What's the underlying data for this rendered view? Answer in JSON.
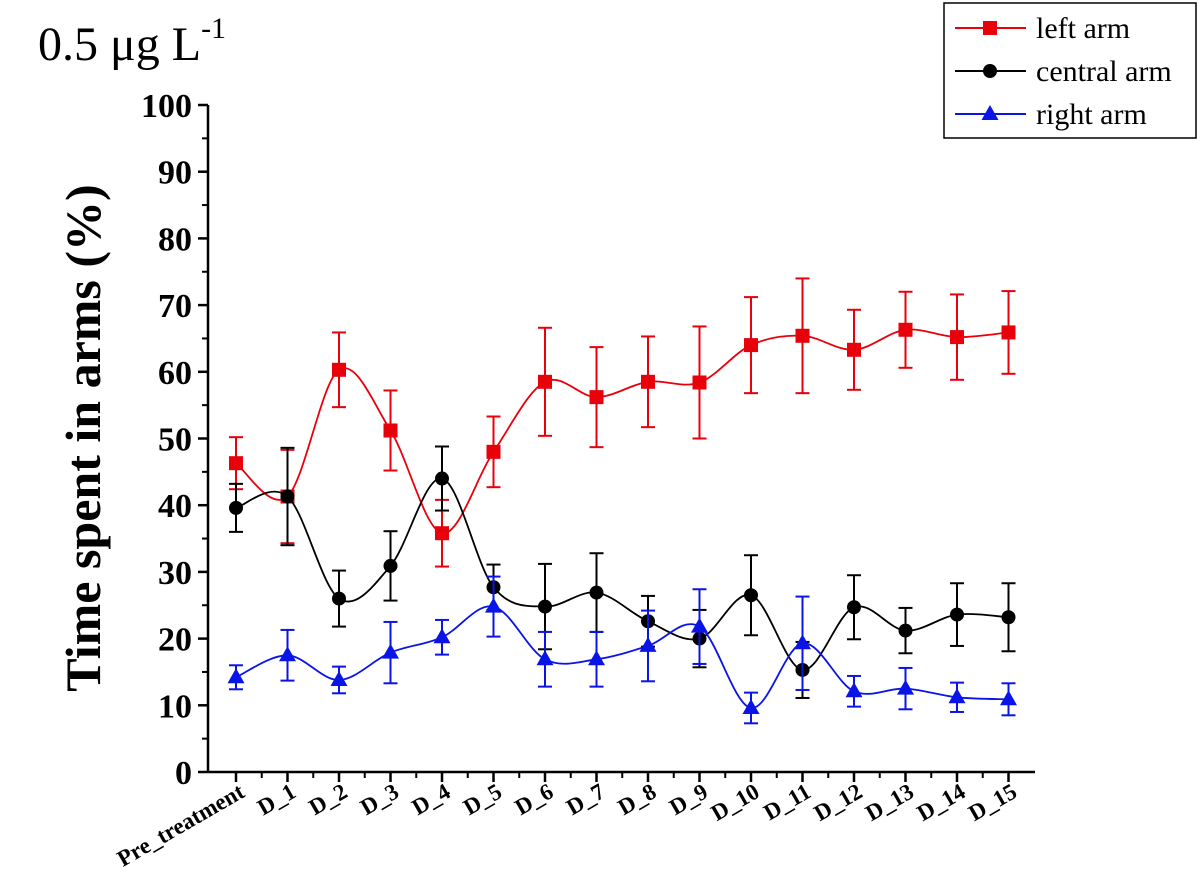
{
  "chart_data": {
    "type": "line",
    "title": "0.5 μg L",
    "title_superscript": "-1",
    "xlabel": "",
    "ylabel": "Time spent in arms (%)",
    "ylim": [
      0,
      100
    ],
    "yticks": [
      0,
      10,
      20,
      30,
      40,
      50,
      60,
      70,
      80,
      90,
      100
    ],
    "grid": false,
    "legend_position": "top-right",
    "categories": [
      "Pre_treatment",
      "D_1",
      "D_2",
      "D_3",
      "D_4",
      "D_5",
      "D_6",
      "D_7",
      "D_8",
      "D_9",
      "D_10",
      "D_11",
      "D_12",
      "D_13",
      "D_14",
      "D_15"
    ],
    "series": [
      {
        "name": "left arm",
        "color": "#e8000b",
        "marker": "square",
        "values": [
          46.3,
          41.3,
          60.3,
          51.2,
          35.8,
          48.0,
          58.5,
          56.2,
          58.5,
          58.4,
          64.0,
          65.4,
          63.3,
          66.3,
          65.2,
          65.9
        ],
        "errors": [
          3.9,
          7.0,
          5.6,
          6.0,
          5.0,
          5.3,
          8.1,
          7.5,
          6.8,
          8.4,
          7.2,
          8.6,
          6.0,
          5.7,
          6.4,
          6.2
        ]
      },
      {
        "name": "central arm",
        "color": "#000000",
        "marker": "circle",
        "values": [
          39.6,
          41.3,
          26.0,
          30.9,
          44.0,
          27.7,
          24.8,
          26.9,
          22.6,
          20.0,
          26.5,
          15.3,
          24.7,
          21.2,
          23.6,
          23.2
        ],
        "errors": [
          3.6,
          7.3,
          4.2,
          5.2,
          4.8,
          3.4,
          6.4,
          5.9,
          3.8,
          4.3,
          6.0,
          4.2,
          4.8,
          3.4,
          4.7,
          5.1
        ]
      },
      {
        "name": "right arm",
        "color": "#0a14e6",
        "marker": "triangle",
        "values": [
          14.2,
          17.5,
          13.8,
          17.9,
          20.2,
          24.8,
          16.9,
          16.9,
          18.9,
          21.8,
          9.6,
          19.3,
          12.1,
          12.5,
          11.2,
          10.9
        ],
        "errors": [
          1.8,
          3.8,
          2.0,
          4.6,
          2.6,
          4.5,
          4.1,
          4.1,
          5.3,
          5.6,
          2.3,
          7.0,
          2.3,
          3.1,
          2.2,
          2.4
        ]
      }
    ]
  }
}
